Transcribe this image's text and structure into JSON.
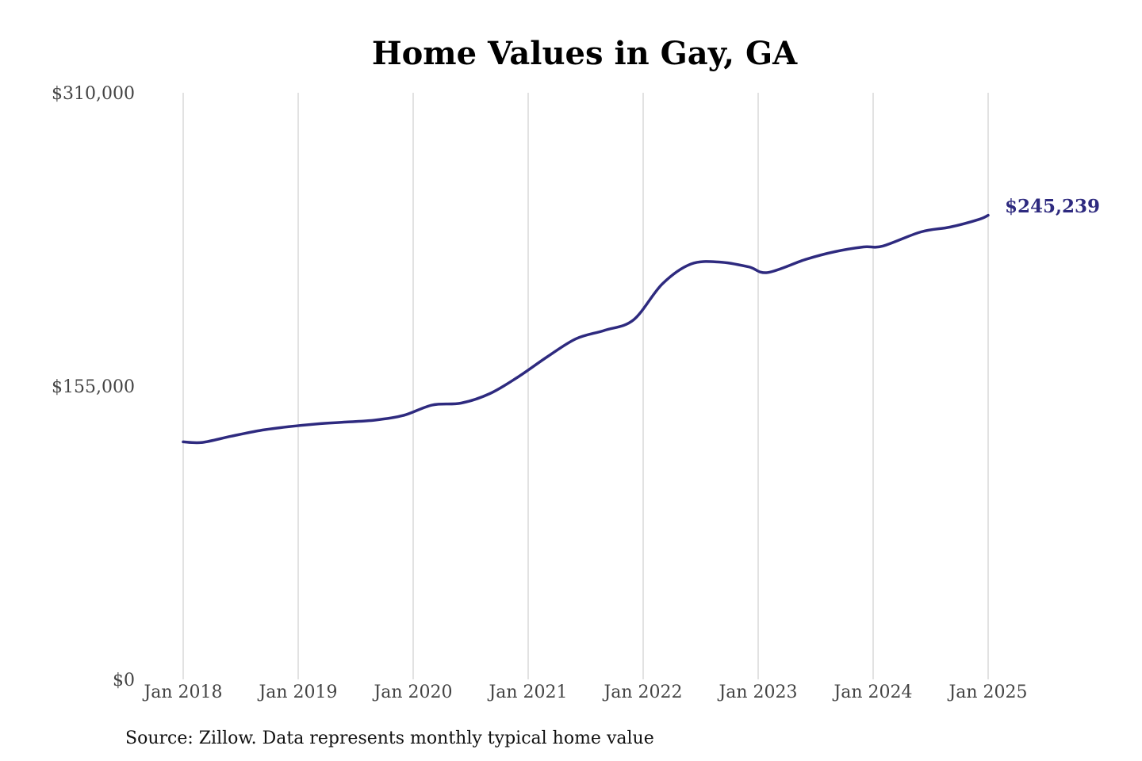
{
  "chart_data": {
    "type": "line",
    "title": "Home Values in Gay, GA",
    "xlabel": "",
    "ylabel": "",
    "x_tick_labels": [
      "Jan 2018",
      "Jan 2019",
      "Jan 2020",
      "Jan 2021",
      "Jan 2022",
      "Jan 2023",
      "Jan 2024",
      "Jan 2025"
    ],
    "y_tick_labels": [
      "$0",
      "$155,000",
      "$310,000"
    ],
    "y_ticks": [
      0,
      155000,
      310000
    ],
    "ylim": [
      0,
      310000
    ],
    "xlim": [
      "2018-01",
      "2025-01"
    ],
    "grid": "vertical lines at each January",
    "legend": "none",
    "line_color": "#2e2a7f",
    "end_label": "$245,239",
    "source": "Source: Zillow. Data represents monthly typical home value",
    "series": [
      {
        "x": [
          "2018-01",
          "2018-03",
          "2018-06",
          "2018-09",
          "2018-12",
          "2019-03",
          "2019-06",
          "2019-09",
          "2019-12",
          "2020-03",
          "2020-06",
          "2020-09",
          "2020-12",
          "2021-03",
          "2021-06",
          "2021-09",
          "2021-12",
          "2022-03",
          "2022-06",
          "2022-09",
          "2022-12",
          "2023-02",
          "2023-06",
          "2023-09",
          "2023-12",
          "2024-02",
          "2024-06",
          "2024-09",
          "2024-12",
          "2025-01"
        ],
        "values": [
          125500,
          125200,
          128500,
          131500,
          133500,
          135000,
          136000,
          137000,
          139500,
          145000,
          146000,
          151000,
          160000,
          170500,
          180000,
          184500,
          190000,
          209000,
          219500,
          220500,
          218000,
          215000,
          222000,
          226000,
          228500,
          229000,
          236500,
          239000,
          243000,
          245239
        ]
      }
    ]
  }
}
